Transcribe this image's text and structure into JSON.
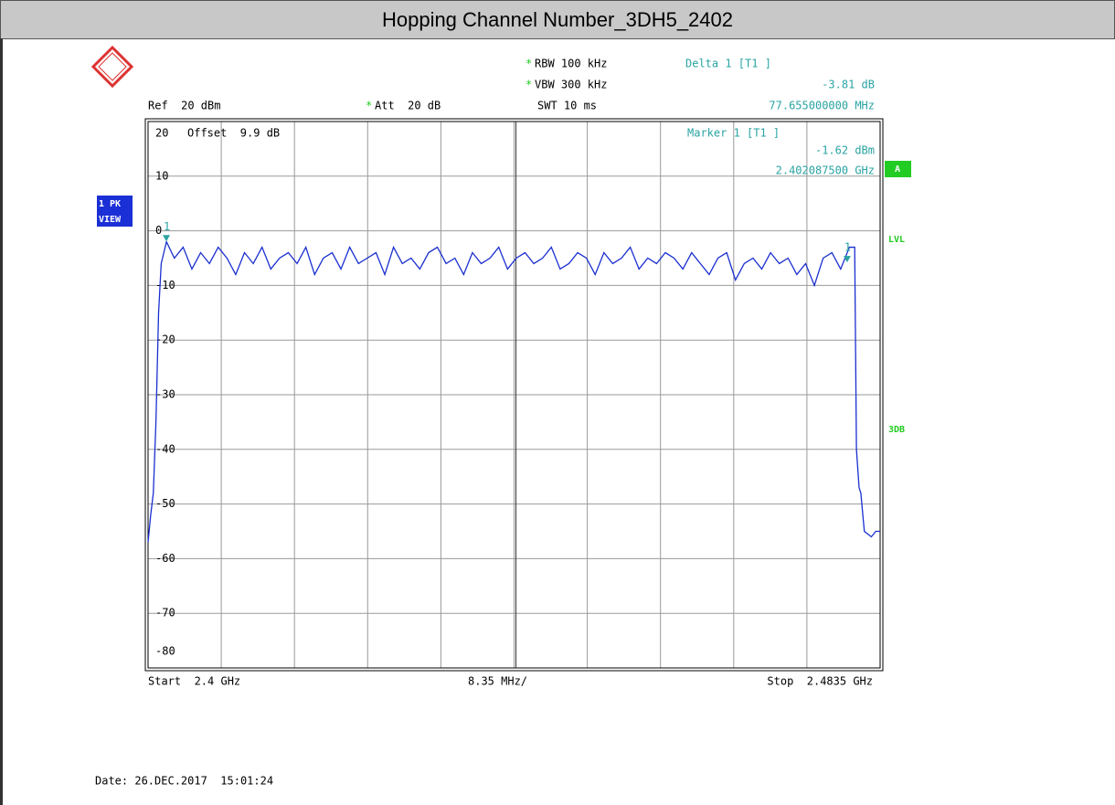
{
  "chart_data": {
    "type": "line",
    "title": "Hopping Channel Number_3DH5_2402",
    "header": {
      "rbw": "RBW 100 kHz",
      "vbw": "VBW 300 kHz",
      "swt": "SWT 10 ms",
      "ref": "Ref  20 dBm",
      "att": "Att  20 dB",
      "star": "*",
      "delta_title": "Delta 1 [T1 ]",
      "delta_level": "-3.81 dB",
      "delta_freq": "77.655000000 MHz"
    },
    "marker_info": {
      "title": "Marker 1 [T1 ]",
      "level": "-1.62 dBm",
      "freq": "2.402087500 GHz"
    },
    "offset": "Offset  9.9 dB",
    "side": {
      "trace1": "1 PK",
      "trace2": "VIEW",
      "a": "A",
      "lvl": "LVL",
      "db3": "3DB"
    },
    "footer": {
      "start": "Start  2.4 GHz",
      "span": "8.35 MHz/",
      "stop": "Stop  2.4835 GHz",
      "date": "Date: 26.DEC.2017  15:01:24"
    },
    "xlim": [
      2.4,
      2.4835
    ],
    "ylim": [
      -80,
      20
    ],
    "yticks": [
      -80,
      -70,
      -60,
      -50,
      -40,
      -30,
      -20,
      -10,
      0,
      10,
      20
    ],
    "grid": true,
    "color": "#1a2fd0",
    "x": [
      2.4,
      2.4003,
      2.4006,
      2.4009,
      2.4012,
      2.4015,
      2.4018,
      2.4021,
      2.403,
      2.404,
      2.405,
      2.406,
      2.407,
      2.408,
      2.409,
      2.41,
      2.411,
      2.412,
      2.413,
      2.414,
      2.415,
      2.416,
      2.417,
      2.418,
      2.419,
      2.42,
      2.421,
      2.422,
      2.423,
      2.424,
      2.425,
      2.426,
      2.427,
      2.428,
      2.429,
      2.43,
      2.431,
      2.432,
      2.433,
      2.434,
      2.435,
      2.436,
      2.437,
      2.438,
      2.439,
      2.44,
      2.441,
      2.442,
      2.443,
      2.444,
      2.445,
      2.446,
      2.447,
      2.448,
      2.449,
      2.45,
      2.451,
      2.452,
      2.453,
      2.454,
      2.455,
      2.456,
      2.457,
      2.458,
      2.459,
      2.46,
      2.461,
      2.462,
      2.463,
      2.464,
      2.465,
      2.466,
      2.467,
      2.468,
      2.469,
      2.47,
      2.471,
      2.472,
      2.473,
      2.474,
      2.475,
      2.476,
      2.477,
      2.478,
      2.479,
      2.48,
      2.4806,
      2.4808,
      2.4811,
      2.4813,
      2.4817,
      2.4825,
      2.483,
      2.4835
    ],
    "values": [
      -57,
      -52,
      -48,
      -35,
      -15,
      -6,
      -4,
      -2,
      -5,
      -3,
      -7,
      -4,
      -6,
      -3,
      -5,
      -8,
      -4,
      -6,
      -3,
      -7,
      -5,
      -4,
      -6,
      -3,
      -8,
      -5,
      -4,
      -7,
      -3,
      -6,
      -5,
      -4,
      -8,
      -3,
      -6,
      -5,
      -7,
      -4,
      -3,
      -6,
      -5,
      -8,
      -4,
      -6,
      -5,
      -3,
      -7,
      -5,
      -4,
      -6,
      -5,
      -3,
      -7,
      -6,
      -4,
      -5,
      -8,
      -4,
      -6,
      -5,
      -3,
      -7,
      -5,
      -6,
      -4,
      -5,
      -7,
      -4,
      -6,
      -8,
      -5,
      -4,
      -9,
      -6,
      -5,
      -7,
      -4,
      -6,
      -5,
      -8,
      -6,
      -10,
      -5,
      -4,
      -7,
      -3,
      -3,
      -40,
      -47,
      -48,
      -55,
      -56,
      -55,
      -55
    ],
    "markers": [
      {
        "label": "1",
        "x": 2.4020875,
        "y": -1.62
      },
      {
        "label": "1",
        "x": 2.47974,
        "y": -5.43
      }
    ]
  }
}
